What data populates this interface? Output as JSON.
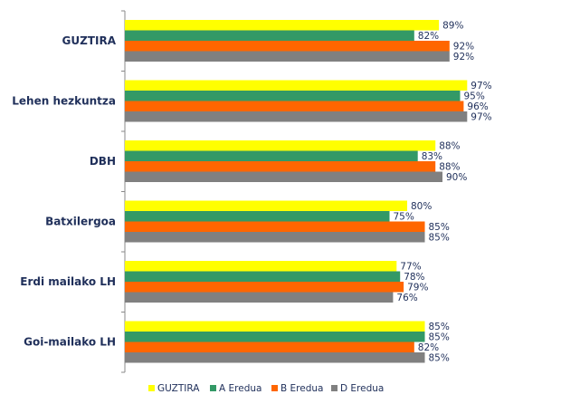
{
  "chart_data": {
    "type": "bar",
    "orientation": "horizontal",
    "categories": [
      "GUZTIRA",
      "Lehen hezkuntza",
      "DBH",
      "Batxilergoa",
      "Erdi mailako LH",
      "Goi-mailako LH"
    ],
    "series": [
      {
        "name": "GUZTIRA",
        "color": "#ffff00",
        "values": [
          89,
          97,
          88,
          80,
          77,
          85
        ]
      },
      {
        "name": "A Eredua",
        "color": "#339966",
        "values": [
          82,
          95,
          83,
          75,
          78,
          85
        ]
      },
      {
        "name": "B Eredua",
        "color": "#ff6600",
        "values": [
          92,
          96,
          88,
          85,
          79,
          82
        ]
      },
      {
        "name": "D Eredua",
        "color": "#808080",
        "values": [
          92,
          97,
          90,
          85,
          76,
          85
        ]
      }
    ],
    "value_suffix": "%",
    "xlim": [
      0,
      100
    ],
    "legend": "bottom",
    "grid": false
  }
}
